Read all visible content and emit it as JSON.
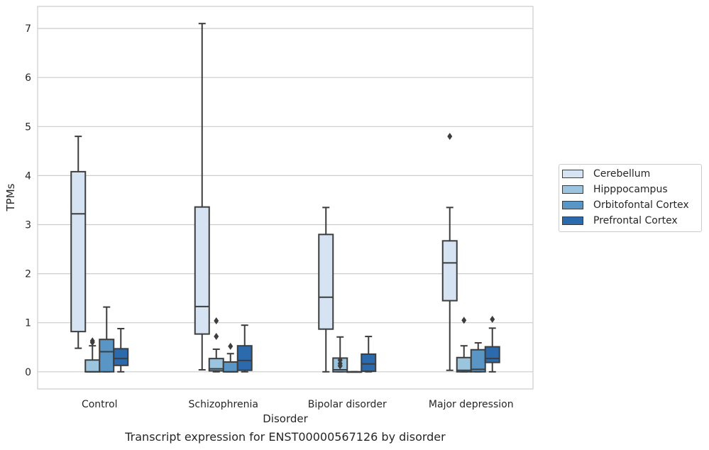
{
  "chart_data": {
    "type": "box",
    "title": "Transcript expression for ENST00000567126 by disorder",
    "xlabel": "Disorder",
    "ylabel": "TPMs",
    "ylim": [
      -0.35,
      7.45
    ],
    "yticks": [
      0,
      1,
      2,
      3,
      4,
      5,
      6,
      7
    ],
    "grid": "horizontal",
    "legend_position": "right",
    "categories": [
      "Control",
      "Schizophrenia",
      "Bipolar disorder",
      "Major depression"
    ],
    "series": [
      {
        "name": "Cerebellum",
        "color": "#d5e3f3",
        "boxes": [
          {
            "whislo": 0.48,
            "q1": 0.82,
            "med": 3.22,
            "q3": 4.08,
            "whishi": 4.8,
            "fliers": []
          },
          {
            "whislo": 0.04,
            "q1": 0.77,
            "med": 1.33,
            "q3": 3.36,
            "whishi": 7.1,
            "fliers": []
          },
          {
            "whislo": 0.0,
            "q1": 0.87,
            "med": 1.52,
            "q3": 2.8,
            "whishi": 3.35,
            "fliers": []
          },
          {
            "whislo": 0.03,
            "q1": 1.45,
            "med": 2.22,
            "q3": 2.67,
            "whishi": 3.35,
            "fliers": [
              4.8
            ]
          }
        ]
      },
      {
        "name": "Hipppocampus",
        "color": "#9bc4de",
        "boxes": [
          {
            "whislo": 0.0,
            "q1": 0.0,
            "med": 0.0,
            "q3": 0.24,
            "whishi": 0.53,
            "fliers": [
              0.6,
              0.63
            ]
          },
          {
            "whislo": 0.0,
            "q1": 0.02,
            "med": 0.06,
            "q3": 0.27,
            "whishi": 0.46,
            "fliers": [
              0.72,
              1.04
            ]
          },
          {
            "whislo": 0.0,
            "q1": 0.0,
            "med": 0.04,
            "q3": 0.28,
            "whishi": 0.71,
            "fliers": [
              0.12,
              0.17,
              0.24
            ]
          },
          {
            "whislo": 0.0,
            "q1": 0.0,
            "med": 0.03,
            "q3": 0.29,
            "whishi": 0.53,
            "fliers": [
              1.05
            ]
          }
        ]
      },
      {
        "name": "Orbitofontal Cortex",
        "color": "#5a96c5",
        "boxes": [
          {
            "whislo": 0.0,
            "q1": 0.0,
            "med": 0.41,
            "q3": 0.66,
            "whishi": 1.32,
            "fliers": []
          },
          {
            "whislo": 0.0,
            "q1": 0.0,
            "med": 0.0,
            "q3": 0.2,
            "whishi": 0.37,
            "fliers": [
              0.52
            ]
          },
          {
            "whislo": 0.0,
            "q1": 0.0,
            "med": 0.0,
            "q3": 0.0,
            "whishi": 0.0,
            "fliers": []
          },
          {
            "whislo": 0.0,
            "q1": 0.0,
            "med": 0.05,
            "q3": 0.45,
            "whishi": 0.59,
            "fliers": []
          }
        ]
      },
      {
        "name": "Prefrontal Cortex",
        "color": "#2a6aad",
        "boxes": [
          {
            "whislo": 0.0,
            "q1": 0.13,
            "med": 0.27,
            "q3": 0.47,
            "whishi": 0.88,
            "fliers": []
          },
          {
            "whislo": 0.0,
            "q1": 0.03,
            "med": 0.23,
            "q3": 0.53,
            "whishi": 0.95,
            "fliers": []
          },
          {
            "whislo": 0.0,
            "q1": 0.01,
            "med": 0.16,
            "q3": 0.36,
            "whishi": 0.72,
            "fliers": []
          },
          {
            "whislo": 0.0,
            "q1": 0.19,
            "med": 0.27,
            "q3": 0.51,
            "whishi": 0.89,
            "fliers": [
              1.07
            ]
          }
        ]
      }
    ]
  }
}
